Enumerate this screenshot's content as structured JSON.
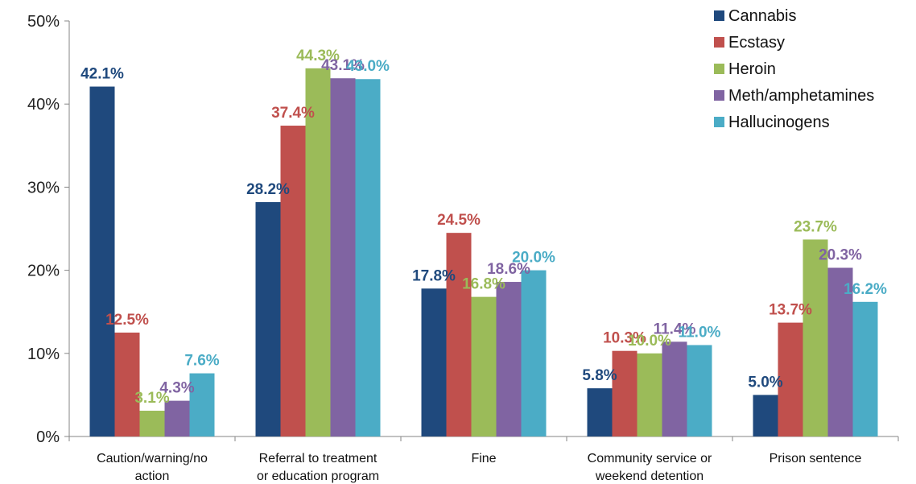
{
  "chart_data": {
    "type": "bar",
    "title": "",
    "xlabel": "",
    "ylabel": "",
    "ylim": [
      0,
      50
    ],
    "y_ticks": [
      "0%",
      "10%",
      "20%",
      "30%",
      "40%",
      "50%"
    ],
    "grid": false,
    "legend_position": "top-right",
    "categories": [
      [
        "Caution/warning/no",
        "action"
      ],
      [
        "Referral to treatment",
        "or education program"
      ],
      [
        "Fine"
      ],
      [
        "Community service or",
        "weekend detention"
      ],
      [
        "Prison sentence"
      ]
    ],
    "series": [
      {
        "name": "Cannabis",
        "color": "#1f497d",
        "values": [
          42.1,
          28.2,
          17.8,
          5.8,
          5.0
        ],
        "labels": [
          "42.1%",
          "28.2%",
          "17.8%",
          "5.8%",
          "5.0%"
        ]
      },
      {
        "name": "Ecstasy",
        "color": "#c0504d",
        "values": [
          12.5,
          37.4,
          24.5,
          10.3,
          13.7
        ],
        "labels": [
          "12.5%",
          "37.4%",
          "24.5%",
          "10.3%",
          "13.7%"
        ]
      },
      {
        "name": "Heroin",
        "color": "#9bbb59",
        "values": [
          3.1,
          44.3,
          16.8,
          10.0,
          23.7
        ],
        "labels": [
          "3.1%",
          "44.3%",
          "16.8%",
          "10.0%",
          "23.7%"
        ]
      },
      {
        "name": "Meth/amphetamines",
        "color": "#8064a2",
        "values": [
          4.3,
          43.1,
          18.6,
          11.4,
          20.3
        ],
        "labels": [
          "4.3%",
          "43.1%",
          "18.6%",
          "11.4%",
          "20.3%"
        ]
      },
      {
        "name": "Hallucinogens",
        "color": "#4bacc6",
        "values": [
          7.6,
          43.0,
          20.0,
          11.0,
          16.2
        ],
        "labels": [
          "7.6%",
          "43.0%",
          "20.0%",
          "11.0%",
          "16.2%"
        ]
      }
    ]
  }
}
